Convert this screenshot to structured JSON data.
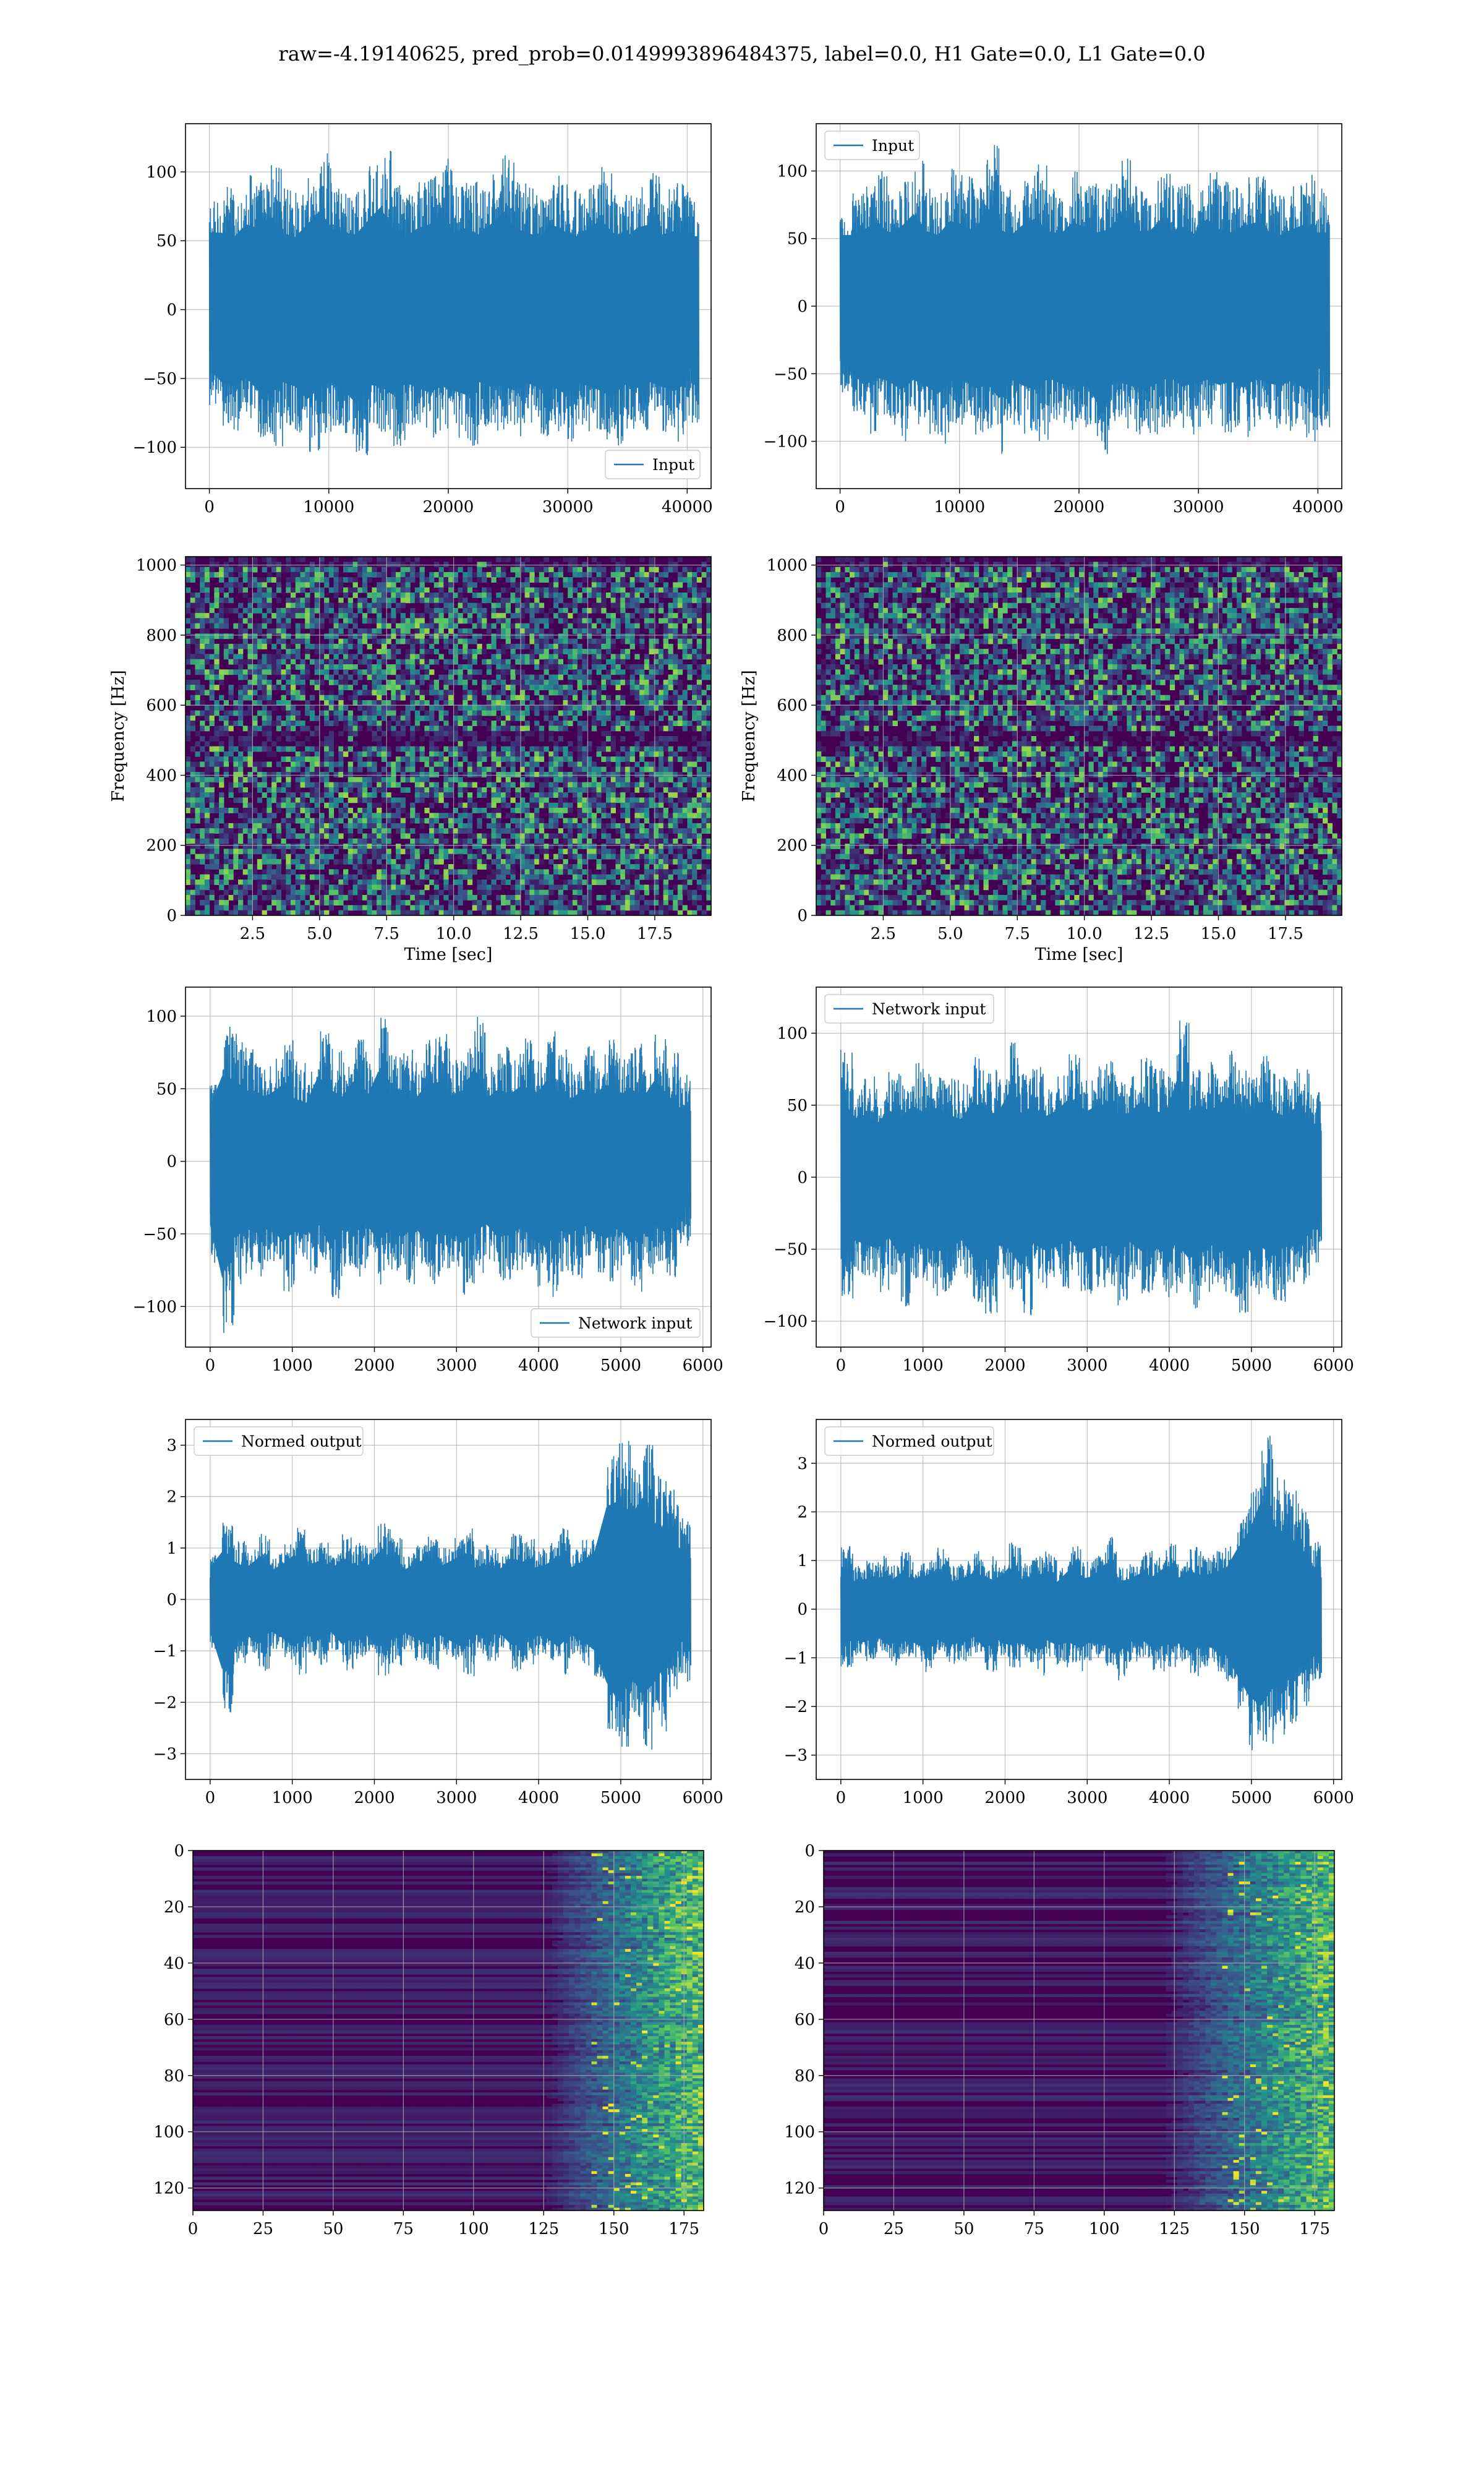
{
  "figure_title": "raw=-4.19140625, pred_prob=0.0149993896484375, label=0.0, H1 Gate=0.0, L1 Gate=0.0",
  "colors": {
    "line": "#1f77b4",
    "grid": "#b0b0b0",
    "viridis_low": "#440154",
    "viridis_mid": "#21918c",
    "viridis_high": "#fde725"
  },
  "chart_data": [
    {
      "id": "h1-input",
      "type": "line",
      "series": [
        {
          "name": "Input",
          "envelope_top": [
            80,
            90,
            85,
            100,
            95,
            110,
            90,
            85,
            100,
            115,
            95,
            90,
            88,
            105,
            120,
            92,
            85,
            95,
            100,
            110,
            90,
            96,
            88,
            100,
            112,
            95,
            90,
            85,
            100,
            92,
            86,
            95,
            105,
            90,
            84,
            96,
            100,
            88,
            92,
            86
          ],
          "envelope_bottom": [
            -70,
            -85,
            -90,
            -80,
            -95,
            -100,
            -85,
            -90,
            -105,
            -92,
            -85,
            -95,
            -110,
            -88,
            -90,
            -100,
            -85,
            -92,
            -97,
            -90,
            -95,
            -100,
            -85,
            -88,
            -90,
            -95,
            -86,
            -92,
            -90,
            -98,
            -85,
            -90,
            -95,
            -100,
            -88,
            -92,
            -85,
            -90,
            -96,
            -86
          ]
        }
      ],
      "x": {
        "range": [
          -2000,
          42000
        ],
        "ticks": [
          0,
          10000,
          20000,
          30000,
          40000
        ],
        "tick_labels": [
          "0",
          "10000",
          "20000",
          "30000",
          "40000"
        ],
        "data_range": [
          0,
          40960
        ]
      },
      "y": {
        "range": [
          -130,
          135
        ],
        "ticks": [
          -100,
          -50,
          0,
          50,
          100
        ],
        "tick_labels": [
          "−100",
          "−50",
          "0",
          "50",
          "100"
        ]
      },
      "legend": "lower-right",
      "grid": true
    },
    {
      "id": "l1-input",
      "type": "line",
      "series": [
        {
          "name": "Input",
          "envelope_top": [
            75,
            85,
            92,
            100,
            88,
            95,
            110,
            90,
            85,
            102,
            96,
            88,
            120,
            92,
            85,
            98,
            105,
            90,
            86,
            100,
            95,
            88,
            92,
            110,
            96,
            85,
            100,
            90,
            94,
            86,
            104,
            92,
            88,
            96,
            100,
            90,
            85,
            92,
            98,
            88
          ],
          "envelope_bottom": [
            -65,
            -80,
            -95,
            -85,
            -90,
            -100,
            -88,
            -95,
            -105,
            -90,
            -85,
            -98,
            -92,
            -110,
            -88,
            -95,
            -100,
            -86,
            -92,
            -96,
            -90,
            -115,
            -88,
            -92,
            -95,
            -100,
            -90,
            -85,
            -96,
            -92,
            -88,
            -94,
            -90,
            -98,
            -86,
            -92,
            -95,
            -88,
            -100,
            -90
          ]
        }
      ],
      "x": {
        "range": [
          -2000,
          42000
        ],
        "ticks": [
          0,
          10000,
          20000,
          30000,
          40000
        ],
        "tick_labels": [
          "0",
          "10000",
          "20000",
          "30000",
          "40000"
        ],
        "data_range": [
          0,
          40960
        ]
      },
      "y": {
        "range": [
          -135,
          135
        ],
        "ticks": [
          -100,
          -50,
          0,
          50,
          100
        ],
        "tick_labels": [
          "−100",
          "−50",
          "0",
          "50",
          "100"
        ]
      },
      "legend": "upper-left",
      "grid": true
    },
    {
      "id": "h1-spectrogram",
      "type": "heatmap",
      "x": {
        "range": [
          0,
          19.6
        ],
        "ticks": [
          2.5,
          5.0,
          7.5,
          10.0,
          12.5,
          15.0,
          17.5
        ],
        "tick_labels": [
          "2.5",
          "5.0",
          "7.5",
          "10.0",
          "12.5",
          "15.0",
          "17.5"
        ],
        "label": "Time [sec]"
      },
      "y": {
        "range": [
          0,
          1024
        ],
        "ticks": [
          0,
          200,
          400,
          600,
          800,
          1000
        ],
        "tick_labels": [
          "0",
          "200",
          "400",
          "600",
          "800",
          "1000"
        ],
        "label": "Frequency [Hz]"
      },
      "dark_bands_hz": [
        500,
        1010
      ],
      "colormap": "viridis",
      "grid": true
    },
    {
      "id": "l1-spectrogram",
      "type": "heatmap",
      "x": {
        "range": [
          0,
          19.6
        ],
        "ticks": [
          2.5,
          5.0,
          7.5,
          10.0,
          12.5,
          15.0,
          17.5
        ],
        "tick_labels": [
          "2.5",
          "5.0",
          "7.5",
          "10.0",
          "12.5",
          "15.0",
          "17.5"
        ],
        "label": "Time [sec]"
      },
      "y": {
        "range": [
          0,
          1024
        ],
        "ticks": [
          0,
          200,
          400,
          600,
          800,
          1000
        ],
        "tick_labels": [
          "0",
          "200",
          "400",
          "600",
          "800",
          "1000"
        ],
        "label": "Frequency [Hz]"
      },
      "dark_bands_hz": [
        500,
        1010
      ],
      "colormap": "viridis",
      "grid": true
    },
    {
      "id": "h1-network-input",
      "type": "line",
      "series": [
        {
          "name": "Network input",
          "envelope_top": [
            55,
            95,
            90,
            80,
            70,
            75,
            85,
            70,
            65,
            95,
            80,
            72,
            90,
            70,
            100,
            75,
            80,
            68,
            85,
            88,
            72,
            78,
            105,
            70,
            80,
            75,
            85,
            70,
            90,
            78,
            68,
            80,
            75,
            85,
            72,
            82,
            70,
            90,
            76,
            60
          ],
          "envelope_bottom": [
            -70,
            -130,
            -85,
            -75,
            -80,
            -70,
            -90,
            -78,
            -82,
            -68,
            -95,
            -75,
            -80,
            -70,
            -88,
            -76,
            -85,
            -72,
            -90,
            -80,
            -75,
            -92,
            -78,
            -70,
            -85,
            -80,
            -74,
            -88,
            -95,
            -76,
            -82,
            -70,
            -80,
            -86,
            -74,
            -90,
            -78,
            -70,
            -80,
            -60
          ]
        }
      ],
      "x": {
        "range": [
          -300,
          6100
        ],
        "ticks": [
          0,
          1000,
          2000,
          3000,
          4000,
          5000,
          6000
        ],
        "tick_labels": [
          "0",
          "1000",
          "2000",
          "3000",
          "4000",
          "5000",
          "6000"
        ],
        "data_range": [
          0,
          5850
        ]
      },
      "y": {
        "range": [
          -128,
          120
        ],
        "ticks": [
          -100,
          -50,
          0,
          50,
          100
        ],
        "tick_labels": [
          "−100",
          "−50",
          "0",
          "50",
          "100"
        ]
      },
      "legend": "lower-right",
      "grid": true
    },
    {
      "id": "l1-network-input",
      "type": "line",
      "series": [
        {
          "name": "Network input",
          "envelope_top": [
            90,
            65,
            70,
            60,
            75,
            68,
            80,
            72,
            78,
            70,
            65,
            85,
            75,
            70,
            95,
            72,
            80,
            68,
            75,
            88,
            70,
            78,
            82,
            70,
            72,
            85,
            76,
            70,
            110,
            75,
            80,
            72,
            90,
            78,
            70,
            85,
            74,
            68,
            80,
            60
          ],
          "envelope_bottom": [
            -85,
            -70,
            -75,
            -80,
            -68,
            -90,
            -72,
            -78,
            -85,
            -75,
            -70,
            -88,
            -95,
            -76,
            -80,
            -100,
            -74,
            -82,
            -78,
            -70,
            -85,
            -80,
            -76,
            -90,
            -72,
            -82,
            -78,
            -85,
            -74,
            -92,
            -80,
            -76,
            -85,
            -100,
            -82,
            -78,
            -88,
            -74,
            -80,
            -60
          ]
        }
      ],
      "x": {
        "range": [
          -300,
          6100
        ],
        "ticks": [
          0,
          1000,
          2000,
          3000,
          4000,
          5000,
          6000
        ],
        "tick_labels": [
          "0",
          "1000",
          "2000",
          "3000",
          "4000",
          "5000",
          "6000"
        ],
        "data_range": [
          0,
          5850
        ]
      },
      "y": {
        "range": [
          -118,
          132
        ],
        "ticks": [
          -100,
          -50,
          0,
          50,
          100
        ],
        "tick_labels": [
          "−100",
          "−50",
          "0",
          "50",
          "100"
        ]
      },
      "legend": "upper-left",
      "grid": true
    },
    {
      "id": "h1-normed-output",
      "type": "line",
      "series": [
        {
          "name": "Normed output",
          "envelope_top": [
            0.9,
            1.5,
            1.2,
            1.0,
            1.3,
            0.9,
            1.1,
            1.4,
            1.0,
            1.2,
            0.9,
            1.3,
            1.1,
            1.0,
            1.5,
            1.2,
            0.9,
            1.1,
            1.3,
            1.0,
            1.2,
            1.4,
            1.0,
            1.1,
            0.9,
            1.3,
            1.2,
            1.0,
            1.1,
            1.4,
            1.0,
            1.2,
            1.5,
            2.9,
            3.1,
            2.6,
            3.2,
            2.4,
            2.2,
            1.6
          ],
          "envelope_bottom": [
            -1.0,
            -2.2,
            -1.3,
            -1.1,
            -1.4,
            -1.0,
            -1.2,
            -1.5,
            -1.1,
            -1.3,
            -1.0,
            -1.4,
            -1.2,
            -1.1,
            -1.5,
            -1.3,
            -1.0,
            -1.2,
            -1.4,
            -1.1,
            -1.3,
            -1.5,
            -1.1,
            -1.2,
            -1.0,
            -1.4,
            -1.3,
            -1.1,
            -1.2,
            -1.5,
            -1.1,
            -1.3,
            -1.6,
            -2.6,
            -3.2,
            -2.4,
            -3.0,
            -2.6,
            -2.0,
            -1.6
          ]
        }
      ],
      "x": {
        "range": [
          -300,
          6100
        ],
        "ticks": [
          0,
          1000,
          2000,
          3000,
          4000,
          5000,
          6000
        ],
        "tick_labels": [
          "0",
          "1000",
          "2000",
          "3000",
          "4000",
          "5000",
          "6000"
        ],
        "data_range": [
          0,
          5850
        ]
      },
      "y": {
        "range": [
          -3.5,
          3.5
        ],
        "ticks": [
          -3,
          -2,
          -1,
          0,
          1,
          2,
          3
        ],
        "tick_labels": [
          "−3",
          "−2",
          "−1",
          "0",
          "1",
          "2",
          "3"
        ]
      },
      "legend": "upper-left",
      "grid": true
    },
    {
      "id": "l1-normed-output",
      "type": "line",
      "series": [
        {
          "name": "Normed output",
          "envelope_top": [
            1.3,
            0.9,
            1.0,
            1.1,
            0.9,
            1.2,
            1.0,
            1.1,
            1.3,
            0.9,
            1.0,
            1.2,
            1.1,
            0.9,
            1.4,
            1.0,
            1.1,
            1.2,
            0.9,
            1.3,
            1.0,
            1.1,
            1.5,
            0.9,
            1.0,
            1.2,
            1.1,
            1.4,
            1.0,
            1.3,
            1.1,
            1.2,
            1.3,
            2.0,
            2.6,
            3.6,
            2.8,
            2.5,
            2.2,
            1.4
          ],
          "envelope_bottom": [
            -1.2,
            -1.0,
            -1.1,
            -0.9,
            -1.2,
            -1.0,
            -1.1,
            -1.3,
            -1.0,
            -1.2,
            -1.1,
            -0.9,
            -1.3,
            -1.0,
            -1.2,
            -1.1,
            -1.4,
            -1.0,
            -1.2,
            -1.1,
            -1.3,
            -1.0,
            -1.2,
            -1.5,
            -1.1,
            -1.0,
            -1.3,
            -1.2,
            -1.1,
            -1.4,
            -1.2,
            -1.3,
            -1.5,
            -2.2,
            -2.9,
            -3.2,
            -2.6,
            -2.4,
            -2.0,
            -1.5
          ]
        }
      ],
      "x": {
        "range": [
          -300,
          6100
        ],
        "ticks": [
          0,
          1000,
          2000,
          3000,
          4000,
          5000,
          6000
        ],
        "tick_labels": [
          "0",
          "1000",
          "2000",
          "3000",
          "4000",
          "5000",
          "6000"
        ],
        "data_range": [
          0,
          5850
        ]
      },
      "y": {
        "range": [
          -3.5,
          3.9
        ],
        "ticks": [
          -3,
          -2,
          -1,
          0,
          1,
          2,
          3
        ],
        "tick_labels": [
          "−3",
          "−2",
          "−1",
          "0",
          "1",
          "2",
          "3"
        ]
      },
      "legend": "upper-left",
      "grid": true
    },
    {
      "id": "h1-feature-map",
      "type": "heatmap",
      "x": {
        "range": [
          0,
          182
        ],
        "ticks": [
          0,
          25,
          50,
          75,
          100,
          125,
          150,
          175
        ],
        "tick_labels": [
          "0",
          "25",
          "50",
          "75",
          "100",
          "125",
          "150",
          "175"
        ]
      },
      "y": {
        "range": [
          0,
          128
        ],
        "inverted": true,
        "ticks": [
          0,
          20,
          40,
          60,
          80,
          100,
          120
        ],
        "tick_labels": [
          "0",
          "20",
          "40",
          "60",
          "80",
          "100",
          "120"
        ]
      },
      "activity_onset": 125,
      "colormap": "viridis",
      "grid": true
    },
    {
      "id": "l1-feature-map",
      "type": "heatmap",
      "x": {
        "range": [
          0,
          182
        ],
        "ticks": [
          0,
          25,
          50,
          75,
          100,
          125,
          150,
          175
        ],
        "tick_labels": [
          "0",
          "25",
          "50",
          "75",
          "100",
          "125",
          "150",
          "175"
        ]
      },
      "y": {
        "range": [
          0,
          128
        ],
        "inverted": true,
        "ticks": [
          0,
          20,
          40,
          60,
          80,
          100,
          120
        ],
        "tick_labels": [
          "0",
          "20",
          "40",
          "60",
          "80",
          "100",
          "120"
        ]
      },
      "activity_onset": 120,
      "colormap": "viridis",
      "grid": true
    }
  ]
}
